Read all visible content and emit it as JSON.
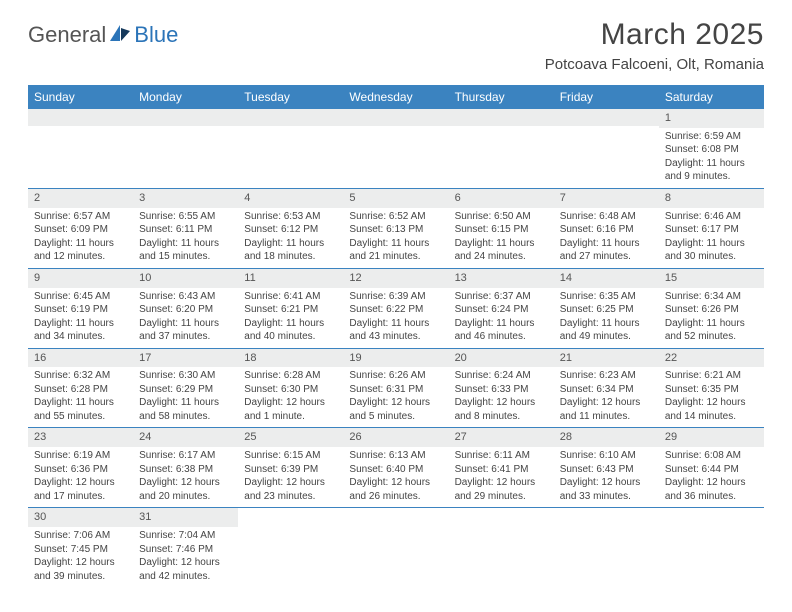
{
  "logo": {
    "part1": "General",
    "part2": "Blue"
  },
  "title": "March 2025",
  "location": "Potcoava Falcoeni, Olt, Romania",
  "header_bg": "#3b83c0",
  "weekdays": [
    "Sunday",
    "Monday",
    "Tuesday",
    "Wednesday",
    "Thursday",
    "Friday",
    "Saturday"
  ],
  "weeks": [
    [
      null,
      null,
      null,
      null,
      null,
      null,
      {
        "n": "1",
        "sr": "6:59 AM",
        "ss": "6:08 PM",
        "dl": "11 hours and 9 minutes."
      }
    ],
    [
      {
        "n": "2",
        "sr": "6:57 AM",
        "ss": "6:09 PM",
        "dl": "11 hours and 12 minutes."
      },
      {
        "n": "3",
        "sr": "6:55 AM",
        "ss": "6:11 PM",
        "dl": "11 hours and 15 minutes."
      },
      {
        "n": "4",
        "sr": "6:53 AM",
        "ss": "6:12 PM",
        "dl": "11 hours and 18 minutes."
      },
      {
        "n": "5",
        "sr": "6:52 AM",
        "ss": "6:13 PM",
        "dl": "11 hours and 21 minutes."
      },
      {
        "n": "6",
        "sr": "6:50 AM",
        "ss": "6:15 PM",
        "dl": "11 hours and 24 minutes."
      },
      {
        "n": "7",
        "sr": "6:48 AM",
        "ss": "6:16 PM",
        "dl": "11 hours and 27 minutes."
      },
      {
        "n": "8",
        "sr": "6:46 AM",
        "ss": "6:17 PM",
        "dl": "11 hours and 30 minutes."
      }
    ],
    [
      {
        "n": "9",
        "sr": "6:45 AM",
        "ss": "6:19 PM",
        "dl": "11 hours and 34 minutes."
      },
      {
        "n": "10",
        "sr": "6:43 AM",
        "ss": "6:20 PM",
        "dl": "11 hours and 37 minutes."
      },
      {
        "n": "11",
        "sr": "6:41 AM",
        "ss": "6:21 PM",
        "dl": "11 hours and 40 minutes."
      },
      {
        "n": "12",
        "sr": "6:39 AM",
        "ss": "6:22 PM",
        "dl": "11 hours and 43 minutes."
      },
      {
        "n": "13",
        "sr": "6:37 AM",
        "ss": "6:24 PM",
        "dl": "11 hours and 46 minutes."
      },
      {
        "n": "14",
        "sr": "6:35 AM",
        "ss": "6:25 PM",
        "dl": "11 hours and 49 minutes."
      },
      {
        "n": "15",
        "sr": "6:34 AM",
        "ss": "6:26 PM",
        "dl": "11 hours and 52 minutes."
      }
    ],
    [
      {
        "n": "16",
        "sr": "6:32 AM",
        "ss": "6:28 PM",
        "dl": "11 hours and 55 minutes."
      },
      {
        "n": "17",
        "sr": "6:30 AM",
        "ss": "6:29 PM",
        "dl": "11 hours and 58 minutes."
      },
      {
        "n": "18",
        "sr": "6:28 AM",
        "ss": "6:30 PM",
        "dl": "12 hours and 1 minute."
      },
      {
        "n": "19",
        "sr": "6:26 AM",
        "ss": "6:31 PM",
        "dl": "12 hours and 5 minutes."
      },
      {
        "n": "20",
        "sr": "6:24 AM",
        "ss": "6:33 PM",
        "dl": "12 hours and 8 minutes."
      },
      {
        "n": "21",
        "sr": "6:23 AM",
        "ss": "6:34 PM",
        "dl": "12 hours and 11 minutes."
      },
      {
        "n": "22",
        "sr": "6:21 AM",
        "ss": "6:35 PM",
        "dl": "12 hours and 14 minutes."
      }
    ],
    [
      {
        "n": "23",
        "sr": "6:19 AM",
        "ss": "6:36 PM",
        "dl": "12 hours and 17 minutes."
      },
      {
        "n": "24",
        "sr": "6:17 AM",
        "ss": "6:38 PM",
        "dl": "12 hours and 20 minutes."
      },
      {
        "n": "25",
        "sr": "6:15 AM",
        "ss": "6:39 PM",
        "dl": "12 hours and 23 minutes."
      },
      {
        "n": "26",
        "sr": "6:13 AM",
        "ss": "6:40 PM",
        "dl": "12 hours and 26 minutes."
      },
      {
        "n": "27",
        "sr": "6:11 AM",
        "ss": "6:41 PM",
        "dl": "12 hours and 29 minutes."
      },
      {
        "n": "28",
        "sr": "6:10 AM",
        "ss": "6:43 PM",
        "dl": "12 hours and 33 minutes."
      },
      {
        "n": "29",
        "sr": "6:08 AM",
        "ss": "6:44 PM",
        "dl": "12 hours and 36 minutes."
      }
    ],
    [
      {
        "n": "30",
        "sr": "7:06 AM",
        "ss": "7:45 PM",
        "dl": "12 hours and 39 minutes."
      },
      {
        "n": "31",
        "sr": "7:04 AM",
        "ss": "7:46 PM",
        "dl": "12 hours and 42 minutes."
      },
      null,
      null,
      null,
      null,
      null
    ]
  ],
  "labels": {
    "sunrise": "Sunrise:",
    "sunset": "Sunset:",
    "daylight": "Daylight:"
  }
}
